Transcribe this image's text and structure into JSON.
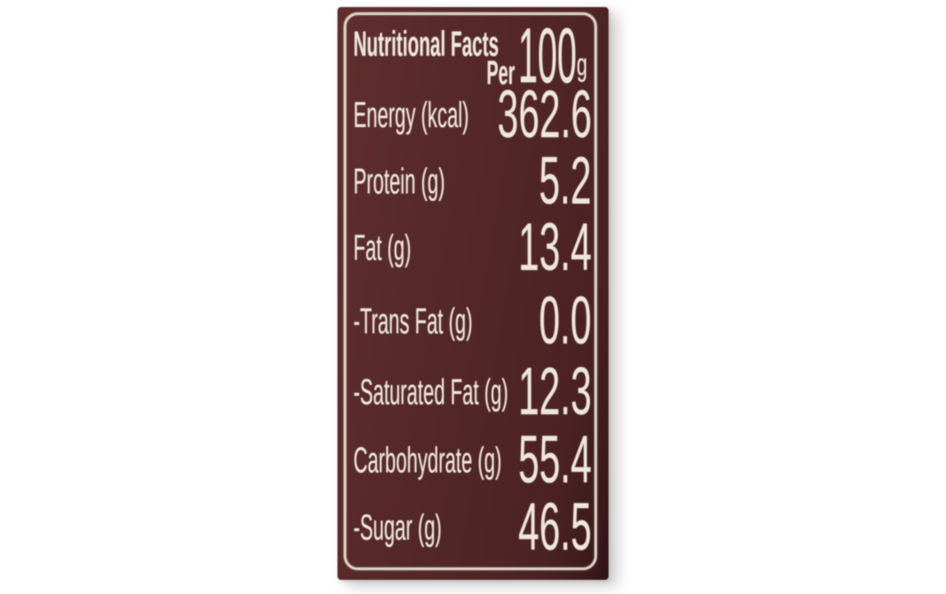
{
  "photo": {
    "description": "nutrition-facts-panel-photo",
    "background_color": "#ffffff",
    "label": {
      "bg_color": "#512626",
      "bg_edge_color": "#2f1315",
      "text_color": "#ece6dc",
      "border_color": "#dcd4c9",
      "header": {
        "title": "Nutritional Facts",
        "per_label": "Per",
        "amount": "100",
        "unit": "g"
      },
      "rows": [
        {
          "name": "Energy (kcal)",
          "value": "362.6"
        },
        {
          "name": "Protein (g)",
          "value": "5.2"
        },
        {
          "name": "Fat (g)",
          "value": "13.4"
        },
        {
          "name": "-Trans Fat (g)",
          "value": "0.0"
        },
        {
          "name": "-Saturated Fat (g)",
          "value": "12.3"
        },
        {
          "name": "Carbohydrate (g)",
          "value": "55.4"
        },
        {
          "name": "-Sugar (g)",
          "value": "46.5"
        }
      ]
    }
  }
}
